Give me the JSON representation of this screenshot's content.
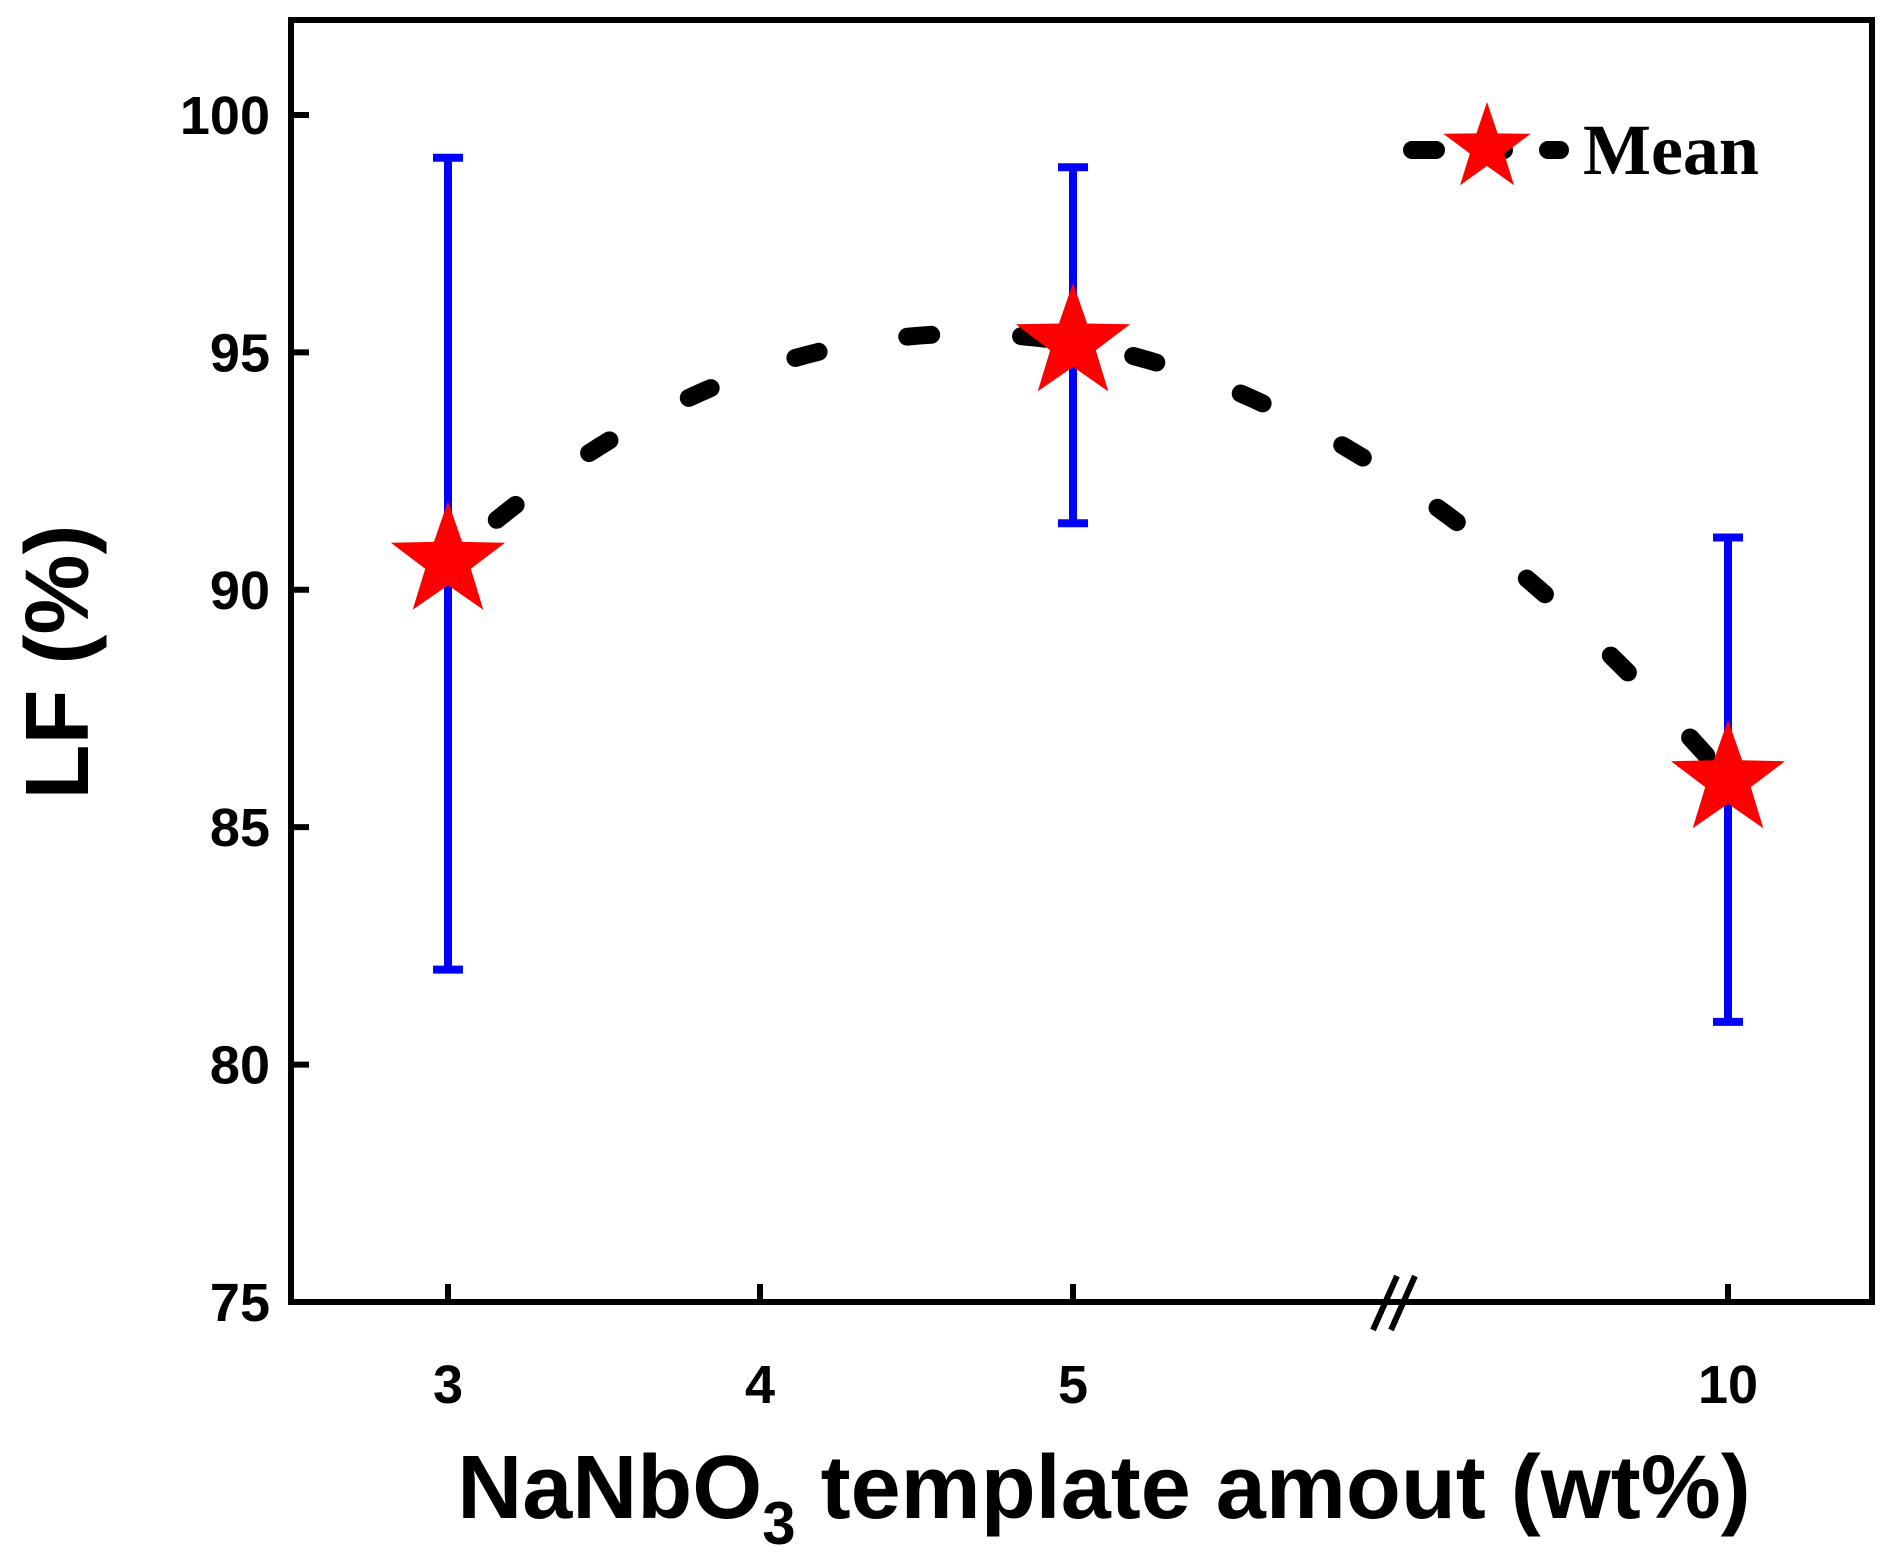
{
  "chart_data": {
    "type": "scatter",
    "title": "",
    "xlabel": {
      "main": "NaNbO",
      "sub": "3",
      "rest": " template amout (wt%)"
    },
    "ylabel": "LF (%)",
    "ylim": [
      75,
      102
    ],
    "yticks": [
      75,
      80,
      85,
      90,
      95,
      100
    ],
    "ytick_labels": [
      "75",
      "80",
      "85",
      "90",
      "95",
      "100"
    ],
    "categories": [
      "3",
      "4",
      "5",
      "10"
    ],
    "x_axis_break": "between 5 and 10",
    "series": [
      {
        "name": "Mean",
        "marker": "star",
        "marker_color": "#ff0000",
        "line_style": "dashed",
        "line_color": "#000000",
        "errorbar_color": "#0000ff",
        "points": [
          {
            "x": "3",
            "y": 90.6,
            "err_low": 82.0,
            "err_high": 99.1
          },
          {
            "x": "5",
            "y": 95.2,
            "err_low": 91.4,
            "err_high": 98.9
          },
          {
            "x": "10",
            "y": 86.0,
            "err_low": 80.9,
            "err_high": 91.1
          }
        ]
      }
    ],
    "legend": {
      "label": "Mean",
      "position": "top-right"
    },
    "grid": false
  }
}
